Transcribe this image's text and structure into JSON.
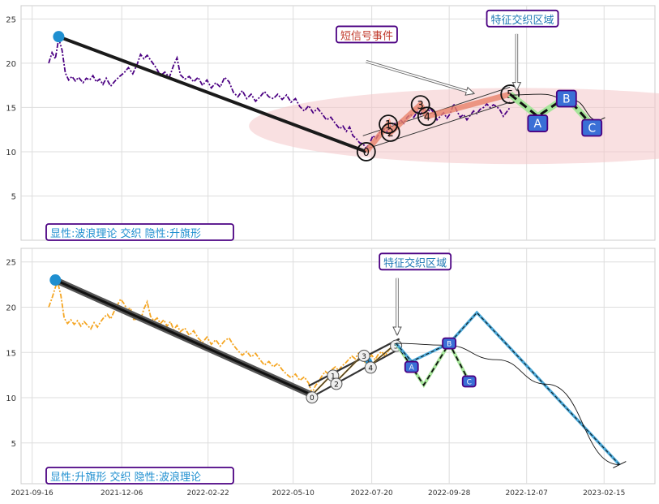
{
  "chart_data": [
    {
      "type": "line",
      "panel": "top",
      "xlabel": "",
      "ylabel": "",
      "ylim": [
        0,
        26.5
      ],
      "yticks": [
        5,
        10,
        15,
        20,
        25
      ],
      "grid": true,
      "price_color": "#4b0082",
      "price": [
        [
          "2021-10-01",
          20.0
        ],
        [
          "2021-10-04",
          21.2
        ],
        [
          "2021-10-07",
          20.5
        ],
        [
          "2021-10-10",
          22.8
        ],
        [
          "2021-10-13",
          21.5
        ],
        [
          "2021-10-16",
          18.9
        ],
        [
          "2021-10-19",
          18.1
        ],
        [
          "2021-10-22",
          18.5
        ],
        [
          "2021-10-25",
          18.0
        ],
        [
          "2021-10-28",
          18.4
        ],
        [
          "2021-11-01",
          17.8
        ],
        [
          "2021-11-04",
          18.3
        ],
        [
          "2021-11-07",
          18.1
        ],
        [
          "2021-11-10",
          18.6
        ],
        [
          "2021-11-13",
          17.9
        ],
        [
          "2021-11-16",
          18.2
        ],
        [
          "2021-11-19",
          17.6
        ],
        [
          "2021-11-22",
          18.3
        ],
        [
          "2021-11-26",
          17.4
        ],
        [
          "2021-11-30",
          18.0
        ],
        [
          "2021-12-04",
          18.5
        ],
        [
          "2021-12-08",
          18.9
        ],
        [
          "2021-12-12",
          19.5
        ],
        [
          "2021-12-16",
          18.8
        ],
        [
          "2021-12-20",
          19.9
        ],
        [
          "2021-12-23",
          21.0
        ],
        [
          "2021-12-26",
          20.5
        ],
        [
          "2021-12-29",
          20.9
        ],
        [
          "2022-01-02",
          20.2
        ],
        [
          "2022-01-06",
          19.5
        ],
        [
          "2022-01-10",
          18.6
        ],
        [
          "2022-01-14",
          19.0
        ],
        [
          "2022-01-18",
          18.4
        ],
        [
          "2022-01-22",
          19.8
        ],
        [
          "2022-01-25",
          20.6
        ],
        [
          "2022-01-28",
          18.7
        ],
        [
          "2022-02-01",
          18.2
        ],
        [
          "2022-02-05",
          18.5
        ],
        [
          "2022-02-09",
          17.9
        ],
        [
          "2022-02-13",
          18.4
        ],
        [
          "2022-02-17",
          17.5
        ],
        [
          "2022-02-21",
          18.1
        ],
        [
          "2022-02-25",
          17.2
        ],
        [
          "2022-03-01",
          17.8
        ],
        [
          "2022-03-05",
          17.3
        ],
        [
          "2022-03-09",
          18.4
        ],
        [
          "2022-03-13",
          17.9
        ],
        [
          "2022-03-17",
          16.7
        ],
        [
          "2022-03-21",
          16.2
        ],
        [
          "2022-03-25",
          16.9
        ],
        [
          "2022-03-29",
          16.0
        ],
        [
          "2022-04-02",
          16.5
        ],
        [
          "2022-04-06",
          15.7
        ],
        [
          "2022-04-10",
          16.2
        ],
        [
          "2022-04-14",
          16.8
        ],
        [
          "2022-04-18",
          16.2
        ],
        [
          "2022-04-22",
          16.0
        ],
        [
          "2022-04-26",
          16.5
        ],
        [
          "2022-04-30",
          15.9
        ],
        [
          "2022-05-04",
          16.4
        ],
        [
          "2022-05-08",
          15.6
        ],
        [
          "2022-05-12",
          16.0
        ],
        [
          "2022-05-16",
          15.1
        ],
        [
          "2022-05-20",
          14.6
        ],
        [
          "2022-05-24",
          15.2
        ],
        [
          "2022-05-28",
          14.4
        ],
        [
          "2022-06-01",
          14.9
        ],
        [
          "2022-06-05",
          14.3
        ],
        [
          "2022-06-09",
          13.6
        ],
        [
          "2022-06-13",
          13.9
        ],
        [
          "2022-06-17",
          13.2
        ],
        [
          "2022-06-21",
          12.6
        ],
        [
          "2022-06-24",
          12.9
        ],
        [
          "2022-06-27",
          12.3
        ],
        [
          "2022-06-30",
          12.8
        ],
        [
          "2022-07-03",
          11.8
        ],
        [
          "2022-07-06",
          11.5
        ],
        [
          "2022-07-09",
          11.0
        ],
        [
          "2022-07-12",
          10.9
        ],
        [
          "2022-07-15",
          10.4
        ],
        [
          "2022-07-18",
          10.9
        ],
        [
          "2022-07-21",
          11.8
        ],
        [
          "2022-07-24",
          11.5
        ],
        [
          "2022-07-27",
          12.1
        ],
        [
          "2022-07-30",
          12.6
        ],
        [
          "2022-08-03",
          12.3
        ],
        [
          "2022-08-06",
          12.9
        ],
        [
          "2022-08-09",
          13.3
        ],
        [
          "2022-08-12",
          13.0
        ],
        [
          "2022-08-15",
          13.6
        ],
        [
          "2022-08-18",
          13.2
        ],
        [
          "2022-08-21",
          13.9
        ],
        [
          "2022-08-24",
          14.2
        ],
        [
          "2022-08-27",
          13.9
        ],
        [
          "2022-08-30",
          14.5
        ],
        [
          "2022-09-02",
          14.2
        ],
        [
          "2022-09-05",
          14.8
        ],
        [
          "2022-09-08",
          14.3
        ],
        [
          "2022-09-11",
          14.9
        ],
        [
          "2022-09-14",
          14.4
        ],
        [
          "2022-09-17",
          13.6
        ],
        [
          "2022-09-20",
          14.0
        ],
        [
          "2022-09-23",
          14.4
        ],
        [
          "2022-09-26",
          13.8
        ],
        [
          "2022-09-29",
          14.3
        ],
        [
          "2022-10-02",
          15.4
        ],
        [
          "2022-10-05",
          14.6
        ],
        [
          "2022-10-08",
          13.9
        ],
        [
          "2022-10-11",
          14.2
        ],
        [
          "2022-10-14",
          13.6
        ],
        [
          "2022-10-17",
          14.1
        ],
        [
          "2022-10-20",
          14.6
        ],
        [
          "2022-10-23",
          14.3
        ],
        [
          "2022-10-26",
          14.8
        ],
        [
          "2022-10-29",
          15.0
        ],
        [
          "2022-11-01",
          15.4
        ],
        [
          "2022-11-04",
          15.0
        ],
        [
          "2022-11-07",
          15.3
        ],
        [
          "2022-11-10",
          15.1
        ],
        [
          "2022-11-13",
          14.7
        ],
        [
          "2022-11-16",
          14.0
        ],
        [
          "2022-11-19",
          14.5
        ],
        [
          "2022-11-22",
          15.0
        ]
      ],
      "wave_main": [
        [
          "2021-10-10",
          23.0
        ],
        [
          "2022-07-15",
          10.0
        ]
      ],
      "impulse": [
        [
          "2022-07-15",
          10.0
        ],
        [
          "2022-08-04",
          13.1
        ],
        [
          "2022-08-06",
          12.2
        ],
        [
          "2022-09-02",
          15.3
        ],
        [
          "2022-09-08",
          14.0
        ],
        [
          "2022-11-22",
          16.5
        ]
      ],
      "impulse_labels": [
        [
          "2022-07-15",
          10.0,
          "0"
        ],
        [
          "2022-08-04",
          13.1,
          "1"
        ],
        [
          "2022-08-06",
          12.2,
          "2"
        ],
        [
          "2022-09-02",
          15.3,
          "3"
        ],
        [
          "2022-09-08",
          14.0,
          "4"
        ],
        [
          "2022-11-22",
          16.5,
          "5"
        ]
      ],
      "correction": [
        [
          "2022-11-22",
          16.5
        ],
        [
          "2022-12-17",
          14.0
        ],
        [
          "2023-01-12",
          16.2
        ],
        [
          "2023-02-04",
          13.0
        ]
      ],
      "correction_labels": [
        [
          "2022-12-17",
          13.2,
          "A"
        ],
        [
          "2023-01-12",
          16.0,
          "B"
        ],
        [
          "2023-02-04",
          12.7,
          "C"
        ]
      ],
      "channel_upper": [
        [
          "2022-07-12",
          11.8
        ],
        [
          "2022-11-22",
          17.3
        ]
      ],
      "channel_lower": [
        [
          "2022-07-12",
          10.2
        ],
        [
          "2022-11-22",
          15.6
        ]
      ],
      "arc": [
        [
          "2022-11-22",
          16.4
        ],
        [
          "2022-12-20",
          16.5
        ],
        [
          "2023-01-18",
          15.8
        ],
        [
          "2023-02-10",
          13.5
        ]
      ],
      "flag_band": {
        "center": [
          "2022-12-01",
          12.9
        ],
        "x_half_days": 245,
        "y_half": 4.3
      },
      "annotations": [
        {
          "text": "短信号事件",
          "color": "#c0392b",
          "anchor": [
            "2022-06-18",
            22.7
          ],
          "arrow_from": [
            "2022-07-15",
            20.2
          ],
          "arrow_to": [
            "2022-10-20",
            16.6
          ]
        },
        {
          "text": "特征交织区域",
          "color": "#1f78b4",
          "anchor": [
            "2022-11-01",
            24.5
          ],
          "arrow_from": [
            "2022-11-28",
            23.3
          ],
          "arrow_to": [
            "2022-11-28",
            17.0
          ]
        }
      ],
      "corner_label": "显性:波浪理论 交织 隐性:升旗形"
    },
    {
      "type": "line",
      "panel": "bottom",
      "xlabel": "",
      "ylabel": "",
      "ylim": [
        0.5,
        26.5
      ],
      "yticks": [
        5,
        10,
        15,
        20,
        25
      ],
      "grid": true,
      "xticks": [
        "2021-09-16",
        "2021-12-06",
        "2022-02-22",
        "2022-05-10",
        "2022-07-20",
        "2022-09-28",
        "2022-12-07",
        "2023-02-15"
      ],
      "price_color": "#f5a623",
      "price": [
        [
          "2021-10-01",
          20.0
        ],
        [
          "2021-10-04",
          21.0
        ],
        [
          "2021-10-07",
          22.2
        ],
        [
          "2021-10-09",
          22.8
        ],
        [
          "2021-10-12",
          21.3
        ],
        [
          "2021-10-15",
          18.8
        ],
        [
          "2021-10-18",
          18.2
        ],
        [
          "2021-10-21",
          18.6
        ],
        [
          "2021-10-24",
          18.1
        ],
        [
          "2021-10-27",
          18.5
        ],
        [
          "2021-10-30",
          17.9
        ],
        [
          "2021-11-02",
          18.4
        ],
        [
          "2021-11-05",
          18.0
        ],
        [
          "2021-11-08",
          17.6
        ],
        [
          "2021-11-11",
          18.3
        ],
        [
          "2021-11-14",
          17.8
        ],
        [
          "2021-11-17",
          18.4
        ],
        [
          "2021-11-20",
          18.9
        ],
        [
          "2021-11-23",
          19.2
        ],
        [
          "2021-11-26",
          18.7
        ],
        [
          "2021-11-29",
          19.5
        ],
        [
          "2021-12-02",
          20.2
        ],
        [
          "2021-12-05",
          20.9
        ],
        [
          "2021-12-08",
          20.4
        ],
        [
          "2021-12-11",
          19.7
        ],
        [
          "2021-12-14",
          19.9
        ],
        [
          "2021-12-17",
          18.5
        ],
        [
          "2021-12-20",
          18.9
        ],
        [
          "2021-12-23",
          18.6
        ],
        [
          "2021-12-26",
          19.8
        ],
        [
          "2021-12-29",
          20.6
        ],
        [
          "2022-01-01",
          19.0
        ],
        [
          "2022-01-04",
          18.5
        ],
        [
          "2022-01-07",
          18.8
        ],
        [
          "2022-01-10",
          18.2
        ],
        [
          "2022-01-13",
          18.6
        ],
        [
          "2022-01-16",
          17.9
        ],
        [
          "2022-01-19",
          18.4
        ],
        [
          "2022-01-22",
          17.5
        ],
        [
          "2022-01-25",
          18.0
        ],
        [
          "2022-01-28",
          17.3
        ],
        [
          "2022-02-01",
          17.7
        ],
        [
          "2022-02-05",
          16.9
        ],
        [
          "2022-02-09",
          17.4
        ],
        [
          "2022-02-13",
          16.6
        ],
        [
          "2022-02-17",
          16.1
        ],
        [
          "2022-02-21",
          16.7
        ],
        [
          "2022-02-25",
          15.9
        ],
        [
          "2022-03-01",
          16.4
        ],
        [
          "2022-03-05",
          15.7
        ],
        [
          "2022-03-09",
          16.3
        ],
        [
          "2022-03-13",
          16.6
        ],
        [
          "2022-03-17",
          15.8
        ],
        [
          "2022-03-21",
          15.2
        ],
        [
          "2022-03-25",
          14.7
        ],
        [
          "2022-03-29",
          15.1
        ],
        [
          "2022-04-02",
          14.5
        ],
        [
          "2022-04-06",
          14.9
        ],
        [
          "2022-04-10",
          14.2
        ],
        [
          "2022-04-14",
          13.6
        ],
        [
          "2022-04-18",
          14.0
        ],
        [
          "2022-04-22",
          13.4
        ],
        [
          "2022-04-26",
          13.8
        ],
        [
          "2022-04-30",
          13.1
        ],
        [
          "2022-05-04",
          12.6
        ],
        [
          "2022-05-08",
          12.2
        ],
        [
          "2022-05-12",
          12.6
        ],
        [
          "2022-05-16",
          11.9
        ],
        [
          "2022-05-20",
          12.3
        ],
        [
          "2022-05-24",
          11.6
        ],
        [
          "2022-05-27",
          10.5
        ],
        [
          "2022-05-30",
          11.3
        ],
        [
          "2022-06-02",
          11.8
        ],
        [
          "2022-06-05",
          12.4
        ],
        [
          "2022-06-08",
          12.9
        ],
        [
          "2022-06-11",
          12.6
        ],
        [
          "2022-06-14",
          13.1
        ],
        [
          "2022-06-17",
          13.4
        ],
        [
          "2022-06-20",
          13.0
        ],
        [
          "2022-06-23",
          13.5
        ],
        [
          "2022-06-26",
          13.8
        ],
        [
          "2022-06-29",
          14.2
        ],
        [
          "2022-07-02",
          14.6
        ],
        [
          "2022-07-05",
          14.3
        ],
        [
          "2022-07-08",
          14.9
        ],
        [
          "2022-07-11",
          14.4
        ],
        [
          "2022-07-14",
          13.9
        ],
        [
          "2022-07-17",
          14.3
        ],
        [
          "2022-07-20",
          14.7
        ],
        [
          "2022-07-23",
          14.2
        ],
        [
          "2022-07-26",
          14.8
        ],
        [
          "2022-07-29",
          15.1
        ],
        [
          "2022-08-01",
          14.6
        ],
        [
          "2022-08-04",
          15.2
        ],
        [
          "2022-08-07",
          15.6
        ],
        [
          "2022-08-10",
          15.9
        ]
      ],
      "wave_main": [
        [
          "2021-10-07",
          23.0
        ],
        [
          "2022-05-27",
          10.3
        ]
      ],
      "impulse": [
        [
          "2022-05-27",
          10.3
        ],
        [
          "2022-06-15",
          12.7
        ],
        [
          "2022-06-18",
          11.8
        ],
        [
          "2022-07-13",
          14.9
        ],
        [
          "2022-07-19",
          13.6
        ],
        [
          "2022-08-11",
          16.0
        ]
      ],
      "impulse_labels": [
        [
          "2022-05-27",
          10.3,
          "0"
        ],
        [
          "2022-06-15",
          12.7,
          "1"
        ],
        [
          "2022-06-18",
          11.8,
          "2"
        ],
        [
          "2022-07-13",
          14.9,
          "3"
        ],
        [
          "2022-07-19",
          13.6,
          "4"
        ],
        [
          "2022-08-11",
          16.0,
          "5"
        ]
      ],
      "channel_upper": [
        [
          "2022-05-24",
          11.3
        ],
        [
          "2022-08-14",
          16.5
        ]
      ],
      "channel_lower": [
        [
          "2022-05-24",
          9.9
        ],
        [
          "2022-08-14",
          15.4
        ]
      ],
      "correction_a": [
        [
          "2022-08-11",
          16.0
        ],
        [
          "2022-09-05",
          11.4
        ],
        [
          "2022-09-28",
          16.0
        ],
        [
          "2022-10-16",
          11.8
        ]
      ],
      "correction_b": [
        [
          "2022-08-11",
          16.0
        ],
        [
          "2022-08-25",
          14.0
        ],
        [
          "2022-09-28",
          16.0
        ],
        [
          "2022-10-23",
          19.4
        ],
        [
          "2023-03-01",
          2.6
        ]
      ],
      "correction_labels": [
        [
          "2022-08-25",
          13.4,
          "A"
        ],
        [
          "2022-09-28",
          16.0,
          "B"
        ],
        [
          "2022-10-16",
          11.8,
          "C"
        ]
      ],
      "arc": [
        [
          "2022-08-11",
          16.0
        ],
        [
          "2022-09-25",
          15.8
        ],
        [
          "2022-11-10",
          14.2
        ],
        [
          "2022-12-25",
          11.5
        ],
        [
          "2023-03-01",
          2.6
        ]
      ],
      "annotations": [
        {
          "text": "特征交织区域",
          "color": "#1f78b4",
          "anchor": [
            "2022-07-27",
            24.5
          ],
          "arrow_from": [
            "2022-08-12",
            23.2
          ],
          "arrow_to": [
            "2022-08-12",
            17.0
          ]
        }
      ],
      "corner_label": "显性:升旗形 交织 隐性:波浪理论"
    }
  ]
}
